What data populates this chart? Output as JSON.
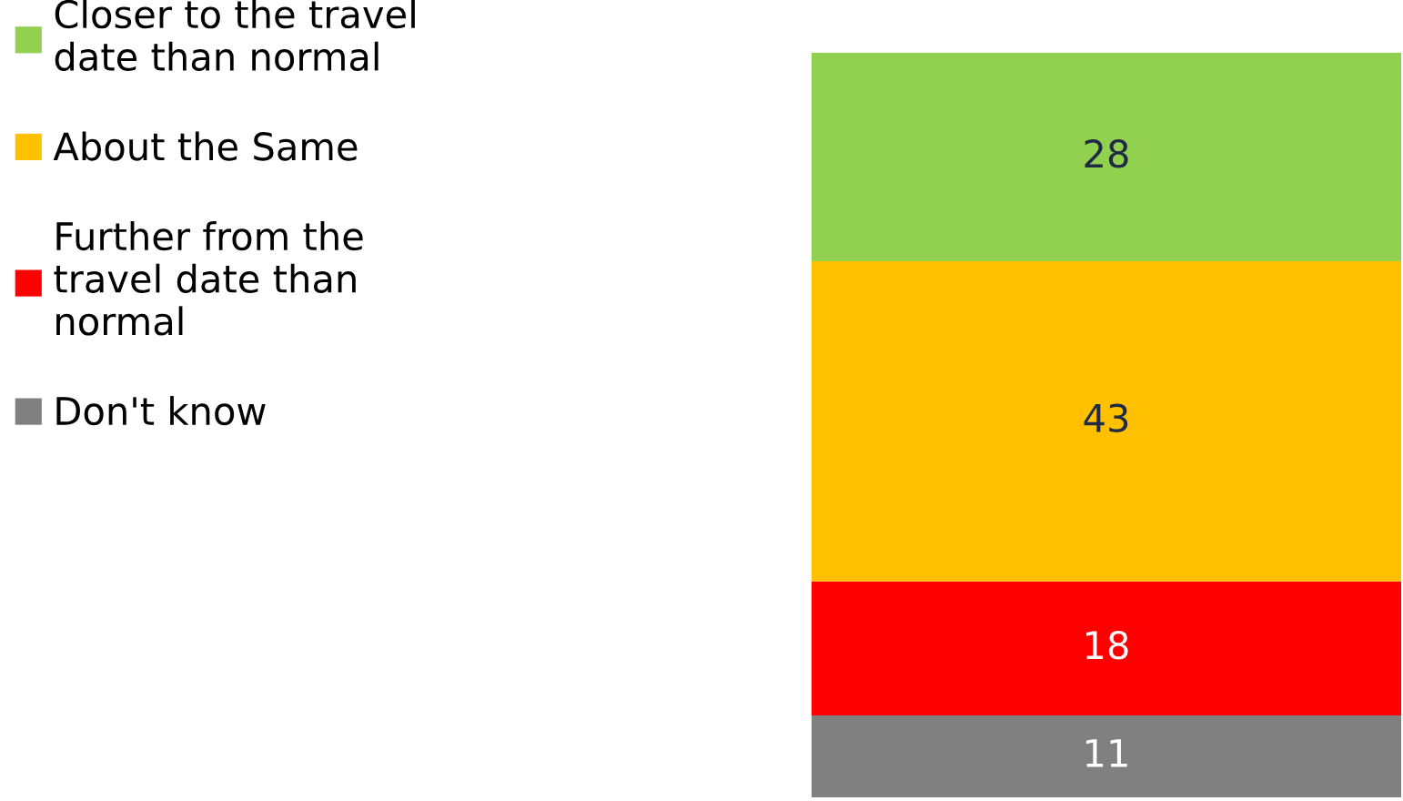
{
  "chart_data": {
    "type": "bar",
    "stacked": true,
    "categories": [
      null
    ],
    "ylim": [
      0,
      100
    ],
    "tick_labels": false,
    "data_labels": true,
    "legend": "left",
    "grid": false,
    "series": [
      {
        "name": "Don't know",
        "color": "#808080",
        "values": [
          11
        ]
      },
      {
        "name": "Further from the\ntravel date than\nnormal",
        "color": "#ff0000",
        "values": [
          18
        ]
      },
      {
        "name": "About the Same",
        "color": "#ffc000",
        "values": [
          43
        ]
      },
      {
        "name": "Closer to the travel\ndate than normal",
        "color": "#92d050",
        "values": [
          28
        ]
      }
    ]
  }
}
